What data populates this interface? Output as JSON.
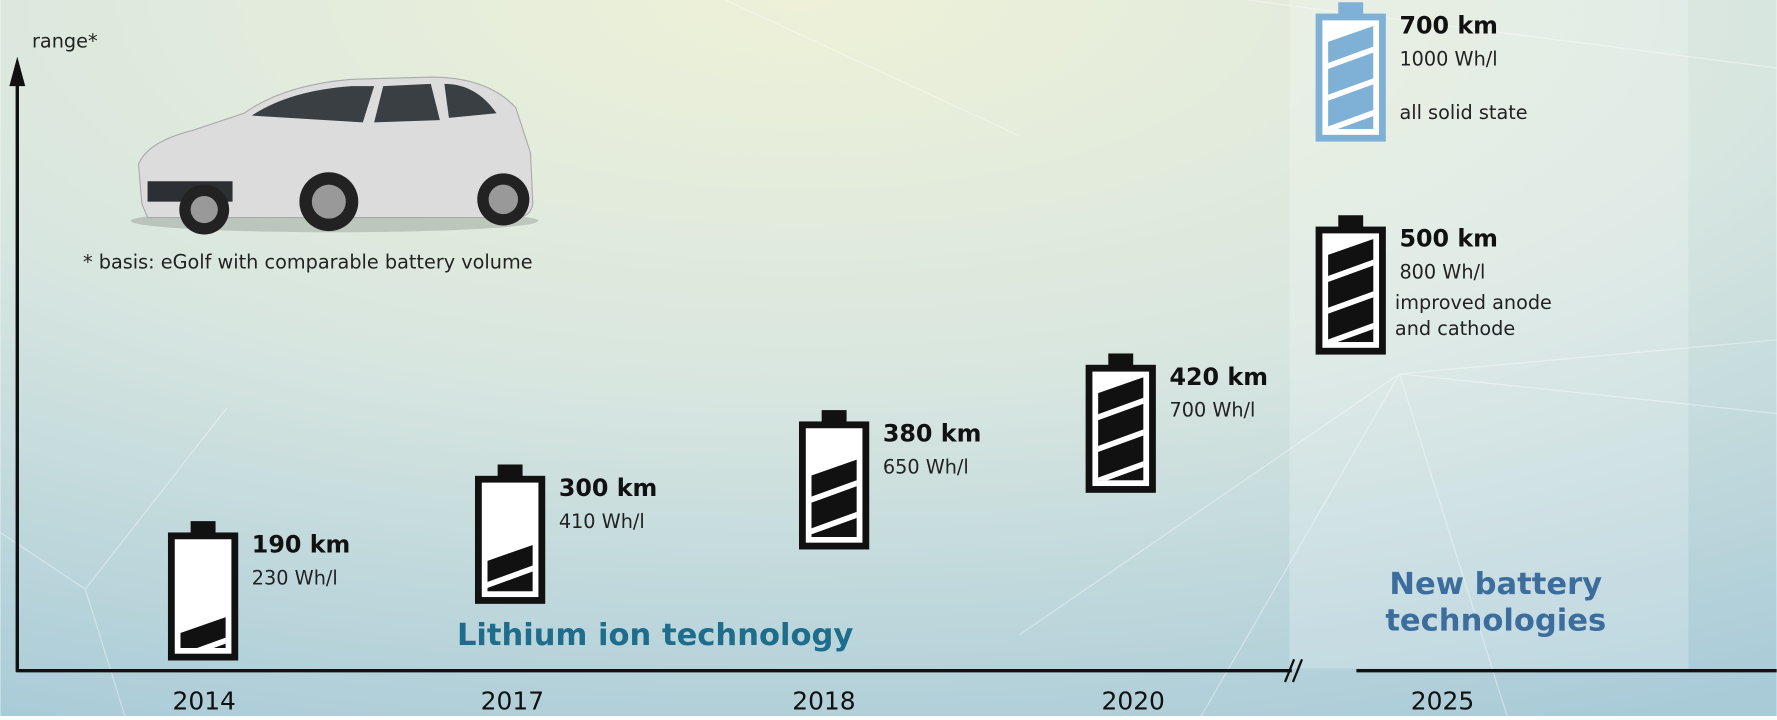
{
  "axis": {
    "label": "range*"
  },
  "footnote": "* basis: eGolf with comparable battery volume",
  "years": [
    "2014",
    "2017",
    "2018",
    "2020",
    "2025"
  ],
  "batteries": [
    {
      "range": "190 km",
      "density": "230 Wh/l"
    },
    {
      "range": "300 km",
      "density": "410 Wh/l"
    },
    {
      "range": "380 km",
      "density": "650 Wh/l"
    },
    {
      "range": "420 km",
      "density": "700 Wh/l"
    },
    {
      "range": "500 km",
      "density": "800 Wh/l",
      "note": [
        "improved  anode",
        "and cathode"
      ]
    },
    {
      "range": "700 km",
      "density": "1000 Wh/l",
      "note": [
        "all solid state"
      ]
    }
  ],
  "sections": {
    "lithium": "Lithium ion technology",
    "new": [
      "New battery",
      "technologies"
    ]
  }
}
